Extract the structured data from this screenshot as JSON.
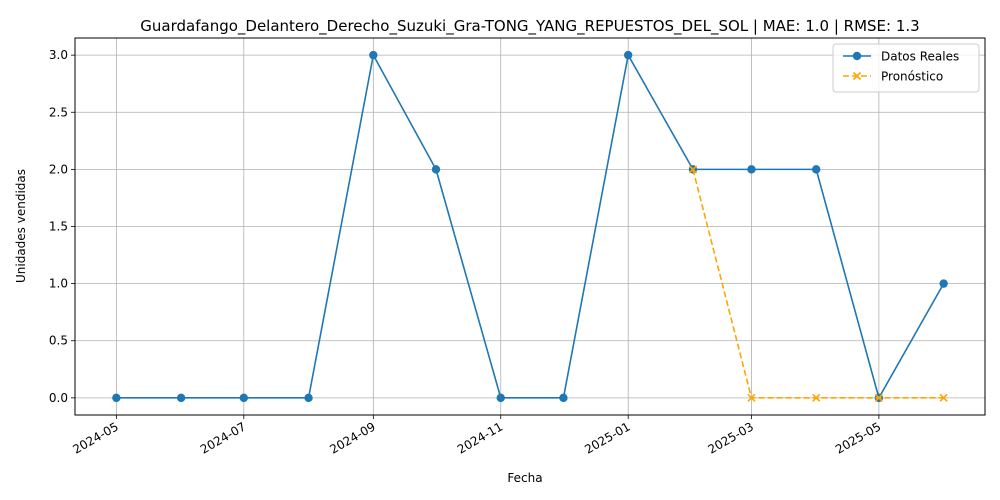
{
  "chart_data": {
    "type": "line",
    "title": "Guardafango_Delantero_Derecho_Suzuki_Gra-TONG_YANG_REPUESTOS_DEL_SOL | MAE: 1.0 | RMSE: 1.3",
    "xlabel": "Fecha",
    "ylabel": "Unidades vendidas",
    "grid": true,
    "legend_position": "top-right",
    "x_ticks": [
      "2024-05",
      "2024-07",
      "2024-09",
      "2024-11",
      "2025-01",
      "2025-03",
      "2025-05"
    ],
    "y_ticks": [
      "0.0",
      "0.5",
      "1.0",
      "1.5",
      "2.0",
      "2.5",
      "3.0"
    ],
    "ylim": [
      -0.15,
      3.15
    ],
    "series": [
      {
        "name": "Datos Reales",
        "color": "#1f77b4",
        "style": "solid",
        "marker": "circle",
        "x": [
          "2024-05-01",
          "2024-06-01",
          "2024-07-01",
          "2024-08-01",
          "2024-09-01",
          "2024-10-01",
          "2024-11-01",
          "2024-12-01",
          "2025-01-01",
          "2025-02-01",
          "2025-03-01",
          "2025-04-01",
          "2025-05-01",
          "2025-06-01"
        ],
        "y": [
          0,
          0,
          0,
          0,
          3,
          2,
          0,
          0,
          3,
          2,
          2,
          2,
          0,
          1
        ]
      },
      {
        "name": "Pronóstico",
        "color": "#ffa500",
        "style": "dashed",
        "marker": "x",
        "x": [
          "2025-02-01",
          "2025-03-01",
          "2025-04-01",
          "2025-05-01",
          "2025-06-01"
        ],
        "y": [
          2,
          0,
          0,
          0,
          0
        ]
      }
    ]
  }
}
